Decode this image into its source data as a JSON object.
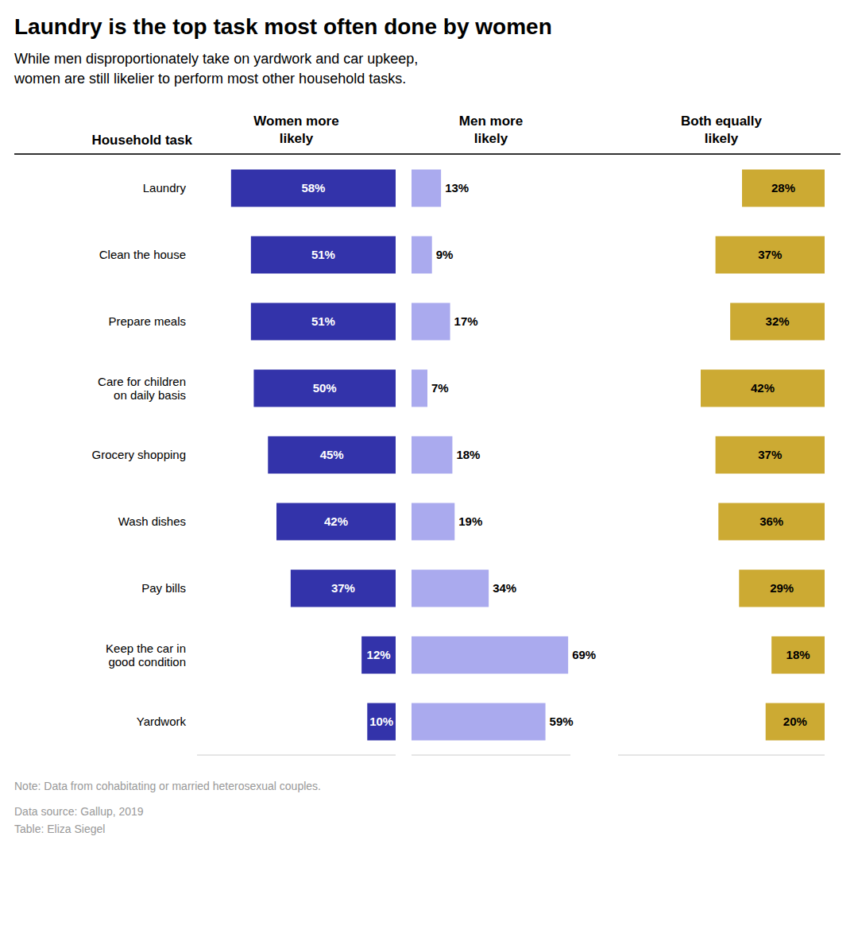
{
  "chart_data": {
    "type": "bar",
    "orientation": "horizontal",
    "title": "Laundry is the top task most often done by women",
    "subtitle": "While men disproportionately take on yardwork and car upkeep,\nwomen are still likelier to perform most other household tasks.",
    "ylabel": "Household task",
    "categories": [
      "Laundry",
      "Clean the house",
      "Prepare meals",
      "Care for children\non daily basis",
      "Grocery shopping",
      "Wash dishes",
      "Pay bills",
      "Keep the car in\ngood condition",
      "Yardwork"
    ],
    "series": [
      {
        "name": "Women more\nlikely",
        "color": "#3333aa",
        "values": [
          58,
          51,
          51,
          50,
          45,
          42,
          37,
          12,
          10
        ],
        "value_labels": [
          "58%",
          "51%",
          "51%",
          "50%",
          "45%",
          "42%",
          "37%",
          "12%",
          "10%"
        ]
      },
      {
        "name": "Men more\nlikely",
        "color": "#aaaaee",
        "values": [
          13,
          9,
          17,
          7,
          18,
          19,
          34,
          69,
          59
        ],
        "value_labels": [
          "13%",
          "9%",
          "17%",
          "7%",
          "18%",
          "19%",
          "34%",
          "69%",
          "59%"
        ]
      },
      {
        "name": "Both equally\nlikely",
        "color": "#ccaa33",
        "values": [
          28,
          37,
          32,
          42,
          37,
          36,
          29,
          18,
          20
        ],
        "value_labels": [
          "28%",
          "37%",
          "32%",
          "42%",
          "37%",
          "36%",
          "29%",
          "18%",
          "20%"
        ]
      }
    ],
    "xlim": [
      0,
      70
    ],
    "data_labels": true,
    "tick_labels": false,
    "annotations": [
      "Note: Data from cohabitating or married heterosexual couples.",
      "Data source: Gallup, 2019\nTable: Eliza Siegel"
    ]
  }
}
